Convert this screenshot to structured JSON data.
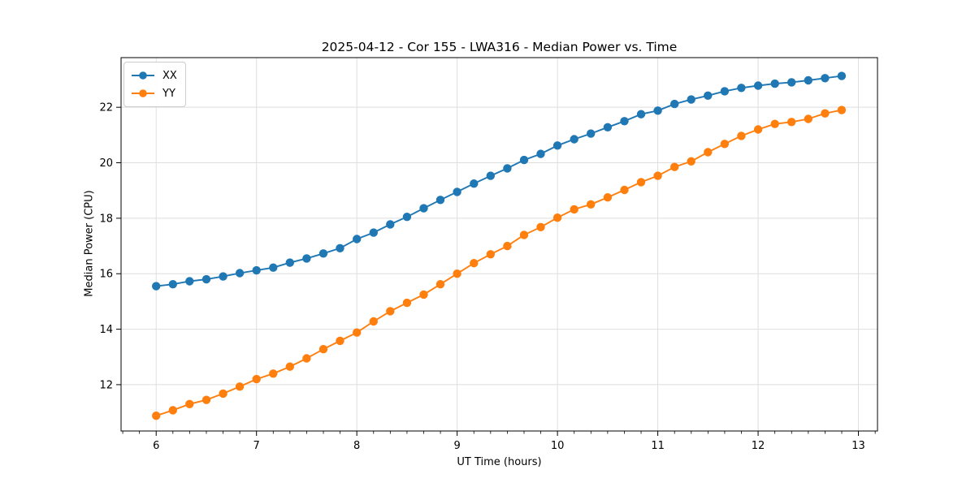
{
  "title": "2025-04-12 - Cor 155 - LWA316 - Median Power vs. Time",
  "legend": {
    "items": [
      {
        "label": "XX",
        "color": "#1f77b4"
      },
      {
        "label": "YY",
        "color": "#ff7f0e"
      }
    ]
  },
  "colors": {
    "series_xx": "#1f77b4",
    "series_yy": "#ff7f0e",
    "grid": "#dedede",
    "spine": "#000000",
    "background": "#ffffff"
  },
  "chart_data": {
    "type": "line",
    "title": "2025-04-12 - Cor 155 - LWA316 - Median Power vs. Time",
    "xlabel": "UT Time (hours)",
    "ylabel": "Median Power (CPU)",
    "grid": true,
    "legend_position": "upper left",
    "marker": "o",
    "xlim": [
      5.65,
      13.19
    ],
    "ylim": [
      10.33,
      23.79
    ],
    "x_ticks": [
      6,
      7,
      8,
      9,
      10,
      11,
      12,
      13
    ],
    "y_ticks": [
      12,
      14,
      16,
      18,
      20,
      22
    ],
    "x_minor_step": 0.16667,
    "x": [
      6.0,
      6.167,
      6.333,
      6.5,
      6.667,
      6.833,
      7.0,
      7.167,
      7.333,
      7.5,
      7.667,
      7.833,
      8.0,
      8.167,
      8.333,
      8.5,
      8.667,
      8.833,
      9.0,
      9.167,
      9.333,
      9.5,
      9.667,
      9.833,
      10.0,
      10.167,
      10.333,
      10.5,
      10.667,
      10.833,
      11.0,
      11.167,
      11.333,
      11.5,
      11.667,
      11.833,
      12.0,
      12.167,
      12.333,
      12.5,
      12.667,
      12.833
    ],
    "series": [
      {
        "name": "XX",
        "color": "#1f77b4",
        "values": [
          15.55,
          15.62,
          15.73,
          15.8,
          15.9,
          16.02,
          16.12,
          16.22,
          16.4,
          16.55,
          16.73,
          16.92,
          17.25,
          17.48,
          17.78,
          18.05,
          18.36,
          18.66,
          18.95,
          19.25,
          19.53,
          19.8,
          20.1,
          20.32,
          20.62,
          20.85,
          21.05,
          21.28,
          21.5,
          21.75,
          21.88,
          22.12,
          22.28,
          22.42,
          22.58,
          22.7,
          22.78,
          22.85,
          22.9,
          22.97,
          23.05,
          23.13
        ]
      },
      {
        "name": "YY",
        "color": "#ff7f0e",
        "values": [
          10.88,
          11.08,
          11.3,
          11.45,
          11.68,
          11.93,
          12.2,
          12.4,
          12.65,
          12.95,
          13.28,
          13.58,
          13.88,
          14.28,
          14.65,
          14.95,
          15.25,
          15.62,
          16.0,
          16.38,
          16.7,
          17.0,
          17.4,
          17.68,
          18.02,
          18.32,
          18.5,
          18.75,
          19.02,
          19.3,
          19.53,
          19.85,
          20.05,
          20.38,
          20.68,
          20.97,
          21.2,
          21.4,
          21.47,
          21.58,
          21.78,
          21.9
        ]
      }
    ]
  }
}
